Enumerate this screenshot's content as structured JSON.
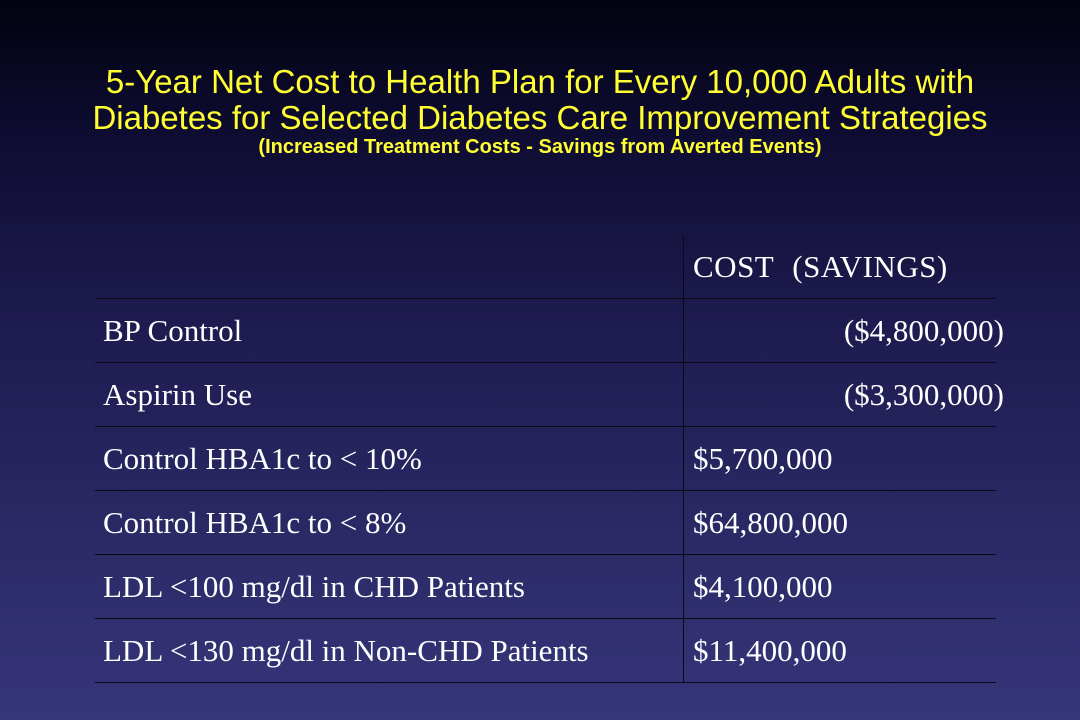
{
  "title": {
    "line1": "5-Year Net Cost to Health Plan for Every 10,000 Adults with",
    "line2": "Diabetes for Selected Diabetes Care Improvement Strategies",
    "subtitle": "(Increased Treatment Costs - Savings from Averted Events)"
  },
  "table": {
    "header": {
      "label": "",
      "cost": "COST",
      "savings": "(SAVINGS)"
    },
    "rows": [
      {
        "strategy": "BP Control",
        "value": "($4,800,000)",
        "kind": "savings"
      },
      {
        "strategy": "Aspirin Use",
        "value": "($3,300,000)",
        "kind": "savings"
      },
      {
        "strategy": "Control HBA1c to < 10%",
        "value": "$5,700,000",
        "kind": "cost"
      },
      {
        "strategy": "Control HBA1c to < 8%",
        "value": "$64,800,000",
        "kind": "cost"
      },
      {
        "strategy": "LDL <100 mg/dl in CHD Patients",
        "value": "$4,100,000",
        "kind": "cost"
      },
      {
        "strategy": "LDL <130 mg/dl in Non-CHD Patients",
        "value": "$11,400,000",
        "kind": "cost"
      }
    ]
  },
  "colors": {
    "title": "#ffff33",
    "text": "#ffffff",
    "background_top": "#020210",
    "background_bottom": "#37357a",
    "grid_lines": "#0a0a14"
  }
}
